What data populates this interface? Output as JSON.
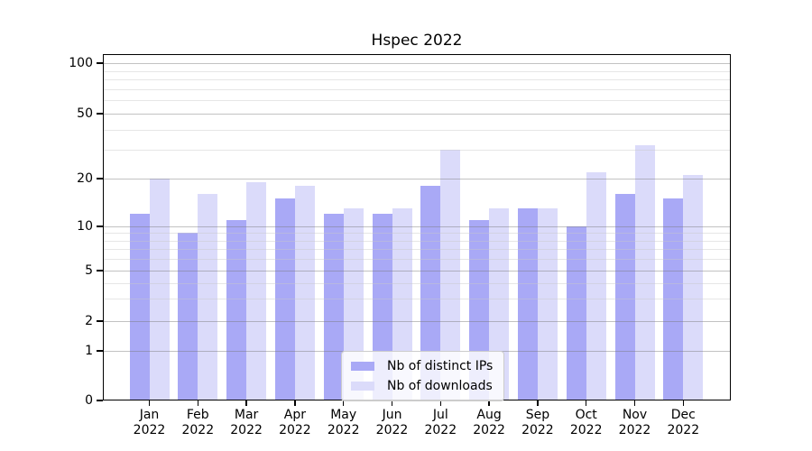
{
  "title": "Hspec 2022",
  "legend": {
    "items": [
      {
        "label": "Nb of distinct IPs",
        "color": "#a9a9f6"
      },
      {
        "label": "Nb of downloads",
        "color": "#dbdbfa"
      }
    ]
  },
  "chart_data": {
    "type": "bar",
    "title": "Hspec 2022",
    "categories": [
      "Jan",
      "Feb",
      "Mar",
      "Apr",
      "May",
      "Jun",
      "Jul",
      "Aug",
      "Sep",
      "Oct",
      "Nov",
      "Dec"
    ],
    "year_label": "2022",
    "series": [
      {
        "name": "Nb of distinct IPs",
        "color": "#a9a9f6",
        "values": [
          12,
          9,
          11,
          15,
          12,
          12,
          18,
          11,
          13,
          10,
          16,
          15
        ]
      },
      {
        "name": "Nb of downloads",
        "color": "#dbdbfa",
        "values": [
          20,
          16,
          19,
          18,
          13,
          13,
          30,
          13,
          13,
          22,
          32,
          21
        ]
      }
    ],
    "y_axis": {
      "scale": "quasi-log (symlog-like, 0 shown at baseline)",
      "major_ticks": [
        0,
        1,
        2,
        5,
        10,
        20,
        50,
        100
      ],
      "minor_ticks": [
        3,
        4,
        6,
        7,
        8,
        9,
        30,
        40,
        60,
        70,
        80,
        90
      ],
      "ylim": [
        0,
        110
      ]
    },
    "xlabel": "",
    "ylabel": "",
    "grid": true,
    "legend_position": "lower center",
    "spine_color": "#000000"
  }
}
